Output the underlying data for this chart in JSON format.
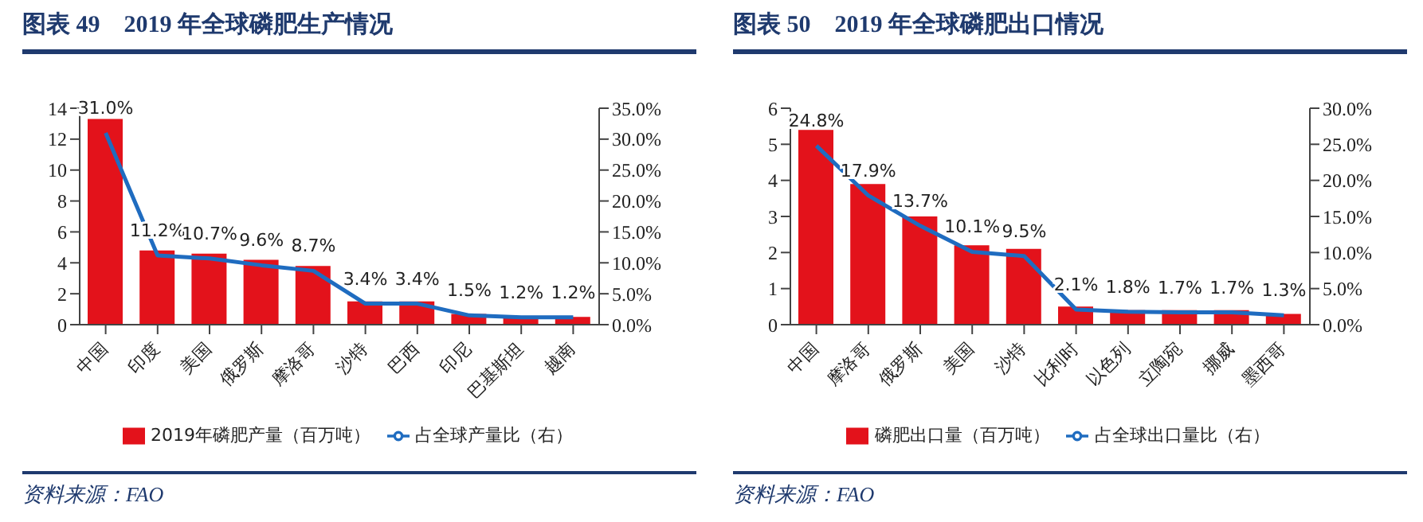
{
  "chart_data": [
    {
      "type": "bar",
      "title": "图表 49　2019 年全球磷肥生产情况",
      "categories": [
        "中国",
        "印度",
        "美国",
        "俄罗斯",
        "摩洛哥",
        "沙特",
        "巴西",
        "印尼",
        "巴基斯坦",
        "越南"
      ],
      "series": [
        {
          "name": "2019年磷肥产量（百万吨）",
          "color": "#e3121b",
          "values": [
            13.3,
            4.8,
            4.6,
            4.2,
            3.8,
            1.5,
            1.5,
            0.7,
            0.5,
            0.5
          ]
        },
        {
          "name": "占全球产量比（右）",
          "type": "line",
          "axis": "y2",
          "color": "#1f6cc0",
          "values": [
            31.0,
            11.2,
            10.7,
            9.6,
            8.7,
            3.4,
            3.4,
            1.5,
            1.2,
            1.2
          ],
          "value_labels": [
            "31.0%",
            "11.2%",
            "10.7%",
            "9.6%",
            "8.7%",
            "3.4%",
            "3.4%",
            "1.5%",
            "1.2%",
            "1.2%"
          ]
        }
      ],
      "ylim": [
        0,
        14
      ],
      "yticks": [
        0,
        2,
        4,
        6,
        8,
        10,
        12,
        14
      ],
      "y2lim": [
        0,
        35
      ],
      "y2ticks": [
        {
          "value": 0,
          "label": "0.0%"
        },
        {
          "value": 5,
          "label": "5.0%"
        },
        {
          "value": 10,
          "label": "10.0%"
        },
        {
          "value": 15,
          "label": "15.0%"
        },
        {
          "value": 20,
          "label": "20.0%"
        },
        {
          "value": 25,
          "label": "25.0%"
        },
        {
          "value": 30,
          "label": "30.0%"
        },
        {
          "value": 35,
          "label": "35.0%"
        }
      ],
      "grid": false,
      "legend": "bottom",
      "marker": "none",
      "annotations": [
        "资料来源：FAO"
      ]
    },
    {
      "type": "bar",
      "title": "图表 50　2019 年全球磷肥出口情况",
      "categories": [
        "中国",
        "摩洛哥",
        "俄罗斯",
        "美国",
        "沙特",
        "比利时",
        "以色列",
        "立陶宛",
        "挪威",
        "墨西哥"
      ],
      "series": [
        {
          "name": "磷肥出口量（百万吨）",
          "color": "#e3121b",
          "values": [
            5.4,
            3.9,
            3.0,
            2.2,
            2.1,
            0.5,
            0.4,
            0.4,
            0.4,
            0.3
          ]
        },
        {
          "name": "占全球出口量比（右）",
          "type": "line",
          "axis": "y2",
          "color": "#1f6cc0",
          "values": [
            24.8,
            17.9,
            13.7,
            10.1,
            9.5,
            2.1,
            1.8,
            1.7,
            1.7,
            1.3
          ],
          "value_labels": [
            "24.8%",
            "17.9%",
            "13.7%",
            "10.1%",
            "9.5%",
            "2.1%",
            "1.8%",
            "1.7%",
            "1.7%",
            "1.3%"
          ]
        }
      ],
      "ylim": [
        0,
        6
      ],
      "yticks": [
        0,
        1,
        2,
        3,
        4,
        5,
        6
      ],
      "y2lim": [
        0,
        30
      ],
      "y2ticks": [
        {
          "value": 0,
          "label": "0.0%"
        },
        {
          "value": 5,
          "label": "5.0%"
        },
        {
          "value": 10,
          "label": "10.0%"
        },
        {
          "value": 15,
          "label": "15.0%"
        },
        {
          "value": 20,
          "label": "20.0%"
        },
        {
          "value": 25,
          "label": "25.0%"
        },
        {
          "value": 30,
          "label": "30.0%"
        }
      ],
      "grid": false,
      "legend": "bottom",
      "marker": "none",
      "annotations": [
        "资料来源：FAO"
      ]
    }
  ]
}
